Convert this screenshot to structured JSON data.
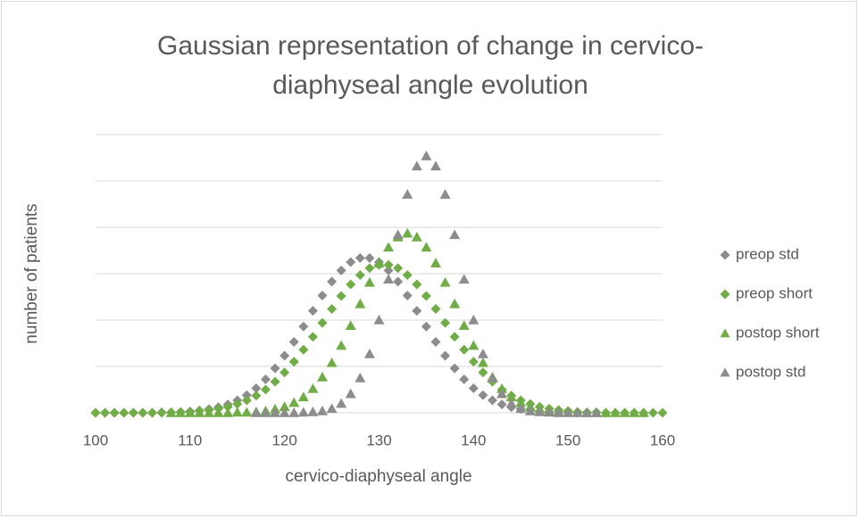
{
  "chart_data": {
    "type": "scatter",
    "title": [
      "Gaussian representation of change in cervico-",
      "diaphyseal angle evolution"
    ],
    "x_label": "cervico-diaphyseal angle",
    "y_label": "number of patients",
    "xlim": [
      100,
      160
    ],
    "xticks": [
      100,
      110,
      120,
      130,
      140,
      150,
      160
    ],
    "ylim": [
      0,
      6
    ],
    "yticks": [
      0,
      1,
      2,
      3,
      4,
      5,
      6
    ],
    "grid": true,
    "legend": "right",
    "series": [
      {
        "name": "preop std",
        "color": "#8c8c8c",
        "marker": "diamond",
        "x": [
          100,
          101,
          102,
          103,
          104,
          105,
          106,
          107,
          108,
          109,
          110,
          111,
          112,
          113,
          114,
          115,
          116,
          117,
          118,
          119,
          120,
          121,
          122,
          123,
          124,
          125,
          126,
          127,
          128,
          129,
          130,
          131,
          132,
          133,
          134,
          135,
          136,
          137,
          138,
          139,
          140,
          141,
          142,
          143,
          144,
          145,
          146,
          147,
          148,
          149,
          150,
          151,
          152
        ],
        "values": [
          0,
          0,
          0,
          0,
          0,
          0,
          0,
          0.01,
          0.01,
          0.02,
          0.03,
          0.05,
          0.08,
          0.12,
          0.18,
          0.27,
          0.38,
          0.53,
          0.72,
          0.96,
          1.23,
          1.53,
          1.86,
          2.2,
          2.53,
          2.83,
          3.07,
          3.25,
          3.34,
          3.34,
          3.25,
          3.07,
          2.83,
          2.53,
          2.2,
          1.86,
          1.53,
          1.23,
          0.96,
          0.72,
          0.53,
          0.38,
          0.27,
          0.18,
          0.12,
          0.08,
          0.05,
          0.03,
          0.02,
          0.01,
          0.01,
          0,
          0
        ]
      },
      {
        "name": "preop short",
        "color": "#70ad47",
        "marker": "diamond",
        "x": [
          100,
          101,
          102,
          103,
          104,
          105,
          106,
          107,
          108,
          109,
          110,
          111,
          112,
          113,
          114,
          115,
          116,
          117,
          118,
          119,
          120,
          121,
          122,
          123,
          124,
          125,
          126,
          127,
          128,
          129,
          130,
          131,
          132,
          133,
          134,
          135,
          136,
          137,
          138,
          139,
          140,
          141,
          142,
          143,
          144,
          145,
          146,
          147,
          148,
          149,
          150,
          151,
          152,
          153,
          154,
          155,
          156,
          157,
          158,
          159,
          160
        ],
        "values": [
          0,
          0,
          0,
          0,
          0,
          0,
          0,
          0,
          0.01,
          0.01,
          0.02,
          0.04,
          0.06,
          0.09,
          0.13,
          0.19,
          0.27,
          0.37,
          0.5,
          0.67,
          0.87,
          1.1,
          1.36,
          1.64,
          1.94,
          2.24,
          2.52,
          2.77,
          2.97,
          3.12,
          3.19,
          3.19,
          3.12,
          2.97,
          2.77,
          2.52,
          2.24,
          1.94,
          1.64,
          1.36,
          1.1,
          0.87,
          0.67,
          0.5,
          0.37,
          0.27,
          0.19,
          0.13,
          0.09,
          0.06,
          0.04,
          0.02,
          0.01,
          0.01,
          0,
          0,
          0,
          0,
          0,
          0,
          0
        ]
      },
      {
        "name": "postop short",
        "color": "#70ad47",
        "marker": "triangle",
        "x": [
          108,
          109,
          110,
          111,
          112,
          113,
          114,
          115,
          116,
          117,
          118,
          119,
          120,
          121,
          122,
          123,
          124,
          125,
          126,
          127,
          128,
          129,
          130,
          131,
          132,
          133,
          134,
          135,
          136,
          137,
          138,
          139,
          140,
          141,
          142,
          143,
          144,
          145,
          146,
          147,
          148,
          149,
          150,
          151,
          152,
          153,
          154,
          155,
          156,
          157,
          158
        ],
        "values": [
          0,
          0,
          0,
          0,
          0,
          0,
          0,
          0.01,
          0.01,
          0.02,
          0.04,
          0.08,
          0.13,
          0.22,
          0.34,
          0.52,
          0.77,
          1.08,
          1.45,
          1.88,
          2.35,
          2.81,
          3.23,
          3.57,
          3.79,
          3.87,
          3.79,
          3.57,
          3.23,
          2.81,
          2.35,
          1.88,
          1.45,
          1.08,
          0.77,
          0.52,
          0.34,
          0.22,
          0.13,
          0.08,
          0.04,
          0.02,
          0.01,
          0.01,
          0,
          0,
          0,
          0,
          0,
          0,
          0
        ]
      },
      {
        "name": "postop std",
        "color": "#8c8c8c",
        "marker": "triangle",
        "x": [
          117,
          118,
          119,
          120,
          121,
          122,
          123,
          124,
          125,
          126,
          127,
          128,
          129,
          130,
          131,
          132,
          133,
          134,
          135,
          136,
          137,
          138,
          139,
          140,
          141,
          142,
          143,
          144,
          145,
          146,
          147,
          148,
          149,
          150,
          151,
          152,
          153
        ],
        "values": [
          0,
          0,
          0,
          0,
          0,
          0.01,
          0.02,
          0.04,
          0.09,
          0.2,
          0.41,
          0.75,
          1.27,
          2,
          2.88,
          3.84,
          4.71,
          5.32,
          5.54,
          5.32,
          4.71,
          3.84,
          2.88,
          2,
          1.27,
          0.75,
          0.41,
          0.2,
          0.09,
          0.04,
          0.02,
          0.01,
          0,
          0,
          0,
          0,
          0
        ]
      }
    ]
  }
}
